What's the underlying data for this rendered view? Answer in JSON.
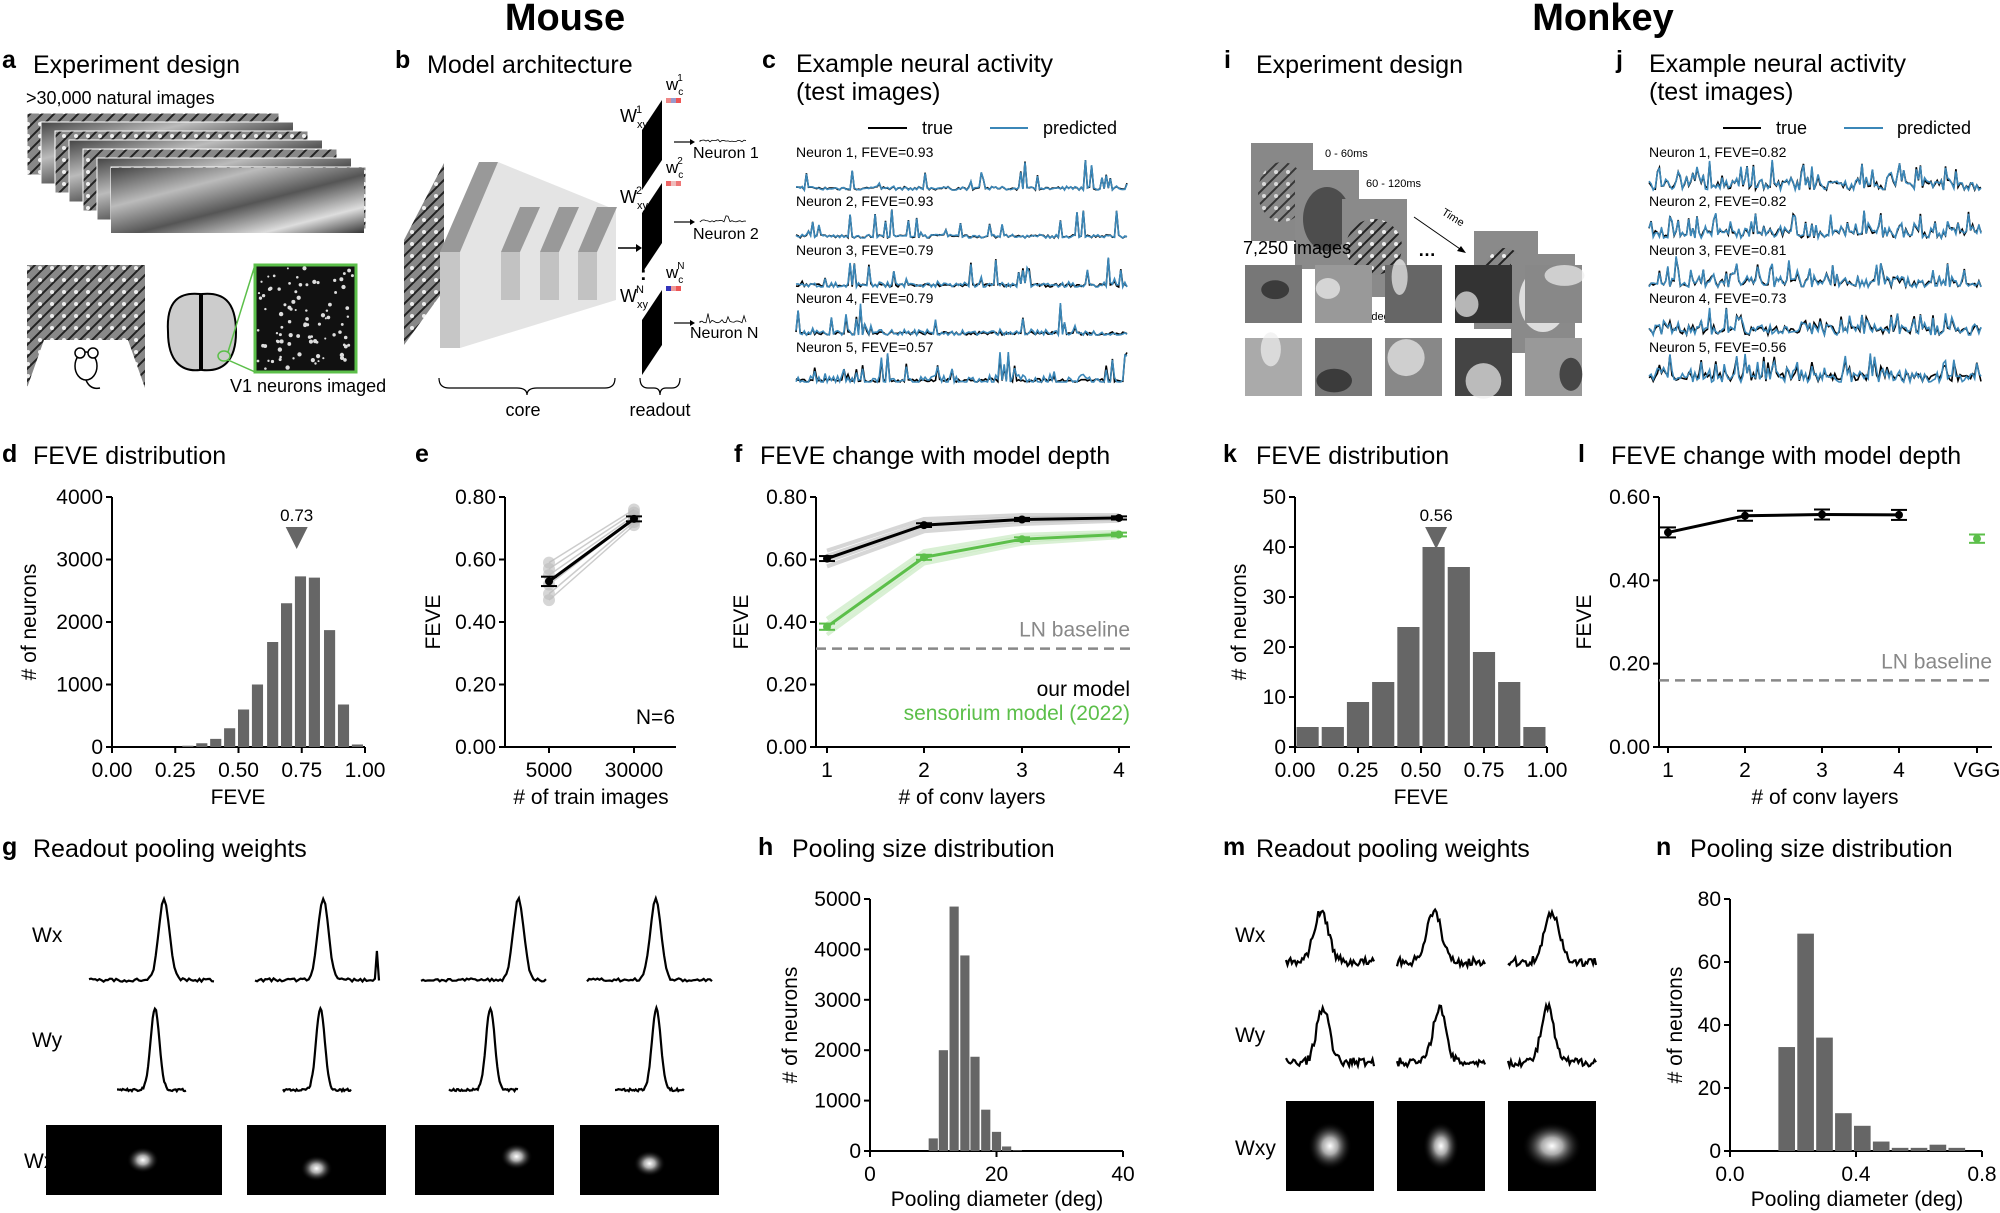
{
  "headers": {
    "mouse": "Mouse",
    "monkey": "Monkey"
  },
  "colors": {
    "bar": "#666666",
    "true": "#000000",
    "predicted": "#3b87b8",
    "sensorium": "#5cbf4a",
    "baseline": "#888888",
    "imaged_box": "#5cbf4a"
  },
  "panels": {
    "a": {
      "letter": "a",
      "title": "Experiment design",
      "caption": ">30,000 natural images",
      "imaged": "V1 neurons imaged"
    },
    "b": {
      "letter": "b",
      "title": "Model architecture",
      "w_base": "W",
      "w_sub": "xy",
      "wc_base": "w",
      "wc_sub": "c",
      "indices": [
        "1",
        "2",
        "N"
      ],
      "neurons": [
        "Neuron 1",
        "Neuron 2",
        "Neuron N"
      ],
      "core": "core",
      "readout": "readout"
    },
    "c": {
      "letter": "c",
      "title1": "Example neural activity",
      "title2": "(test images)",
      "legend_true": "true",
      "legend_pred": "predicted",
      "neurons": [
        "Neuron 1, FEVE=0.93",
        "Neuron 2, FEVE=0.93",
        "Neuron 3, FEVE=0.79",
        "Neuron 4, FEVE=0.79",
        "Neuron 5, FEVE=0.57"
      ]
    },
    "d": {
      "letter": "d",
      "title": "FEVE distribution"
    },
    "e": {
      "letter": "e"
    },
    "f": {
      "letter": "f",
      "title": "FEVE change with model depth"
    },
    "g": {
      "letter": "g",
      "title": "Readout pooling weights",
      "rows": [
        "Wx",
        "Wy",
        "Wxy"
      ]
    },
    "h": {
      "letter": "h",
      "title": "Pooling size distribution"
    },
    "i": {
      "letter": "i",
      "title": "Experiment design",
      "t1": "0 - 60ms",
      "t2": "60 - 120ms",
      "time": "Time",
      "scale": "2 deg",
      "count": "7,250 images"
    },
    "j": {
      "letter": "j",
      "title1": "Example neural activity",
      "title2": "(test images)",
      "legend_true": "true",
      "legend_pred": "predicted",
      "neurons": [
        "Neuron 1, FEVE=0.82",
        "Neuron 2, FEVE=0.82",
        "Neuron 3, FEVE=0.81",
        "Neuron 4, FEVE=0.73",
        "Neuron 5, FEVE=0.56"
      ]
    },
    "k": {
      "letter": "k",
      "title": "FEVE distribution"
    },
    "l": {
      "letter": "l",
      "title": "FEVE change with model depth"
    },
    "m": {
      "letter": "m",
      "title": "Readout pooling weights",
      "rows": [
        "Wx",
        "Wy",
        "Wxy"
      ]
    },
    "n": {
      "letter": "n",
      "title": "Pooling size distribution"
    }
  },
  "chart_data": [
    {
      "panel": "d",
      "type": "bar",
      "xlabel": "FEVE",
      "ylabel": "# of neurons",
      "xlim": [
        0,
        1
      ],
      "ylim": [
        0,
        4000
      ],
      "xticks": [
        "0.00",
        "0.25",
        "0.50",
        "0.75",
        "1.00"
      ],
      "yticks": [
        "0",
        "1000",
        "2000",
        "3000",
        "4000"
      ],
      "bin_width": 0.05,
      "x": [
        0.3,
        0.355,
        0.41,
        0.465,
        0.52,
        0.575,
        0.635,
        0.69,
        0.745,
        0.8,
        0.86,
        0.915,
        0.97
      ],
      "values": [
        20,
        60,
        130,
        300,
        600,
        1000,
        1680,
        2300,
        2730,
        2710,
        1870,
        680,
        40
      ],
      "marker": {
        "label": "0.73",
        "x": 0.73
      }
    },
    {
      "panel": "e",
      "type": "line",
      "xlabel": "# of train images",
      "ylabel": "FEVE",
      "ylim": [
        0,
        0.8
      ],
      "categories": [
        "5000",
        "30000"
      ],
      "yticks": [
        "0.00",
        "0.20",
        "0.40",
        "0.60",
        "0.80"
      ],
      "mean": [
        0.53,
        0.73
      ],
      "sem": [
        0.015,
        0.008
      ],
      "individual": [
        [
          0.59,
          0.76
        ],
        [
          0.57,
          0.75
        ],
        [
          0.55,
          0.74
        ],
        [
          0.52,
          0.73
        ],
        [
          0.49,
          0.72
        ],
        [
          0.47,
          0.71
        ]
      ],
      "annotation": "N=6"
    },
    {
      "panel": "f",
      "type": "line",
      "xlabel": "# of conv layers",
      "ylabel": "FEVE",
      "ylim": [
        0,
        0.8
      ],
      "categories": [
        "1",
        "2",
        "3",
        "4"
      ],
      "yticks": [
        "0.00",
        "0.20",
        "0.40",
        "0.60",
        "0.80"
      ],
      "series": [
        {
          "name": "our model",
          "color": "#000000",
          "values": [
            0.603,
            0.71,
            0.728,
            0.733
          ],
          "sem": [
            0.008,
            0.006,
            0.005,
            0.005
          ]
        },
        {
          "name": "sensorium model (2022)",
          "color": "#5cbf4a",
          "values": [
            0.385,
            0.607,
            0.665,
            0.68
          ],
          "sem": [
            0.01,
            0.008,
            0.006,
            0.006
          ]
        }
      ],
      "baseline": {
        "name": "LN baseline",
        "value": 0.315
      }
    },
    {
      "panel": "k",
      "type": "bar",
      "xlabel": "FEVE",
      "ylabel": "# of neurons",
      "xlim": [
        0,
        1
      ],
      "ylim": [
        0,
        50
      ],
      "xticks": [
        "0.00",
        "0.25",
        "0.50",
        "0.75",
        "1.00"
      ],
      "yticks": [
        "0",
        "10",
        "20",
        "30",
        "40",
        "50"
      ],
      "bin_width": 0.1,
      "x": [
        0.05,
        0.15,
        0.25,
        0.35,
        0.45,
        0.55,
        0.65,
        0.75,
        0.85,
        0.95
      ],
      "values": [
        4,
        4,
        9,
        13,
        24,
        40,
        36,
        19,
        13,
        4
      ],
      "marker": {
        "label": "0.56",
        "x": 0.56
      }
    },
    {
      "panel": "l",
      "type": "line",
      "xlabel": "# of conv layers",
      "ylabel": "FEVE",
      "ylim": [
        0,
        0.6
      ],
      "categories": [
        "1",
        "2",
        "3",
        "4",
        "VGG"
      ],
      "yticks": [
        "0.00",
        "0.20",
        "0.40",
        "0.60"
      ],
      "series": [
        {
          "name": "our model",
          "color": "#000000",
          "values": [
            0.515,
            0.555,
            0.558,
            0.557,
            null
          ],
          "sem": [
            0.012,
            0.012,
            0.012,
            0.012,
            null
          ]
        },
        {
          "name": "VGG",
          "color": "#5cbf4a",
          "values": [
            null,
            null,
            null,
            null,
            0.5
          ],
          "sem": [
            null,
            null,
            null,
            null,
            0.01
          ]
        }
      ],
      "baseline": {
        "name": "LN baseline",
        "value": 0.16
      }
    },
    {
      "panel": "h",
      "type": "bar",
      "xlabel": "Pooling diameter (deg)",
      "ylabel": "# of neurons",
      "xlim": [
        0,
        40
      ],
      "ylim": [
        0,
        5000
      ],
      "xticks": [
        "0",
        "20",
        "40"
      ],
      "yticks": [
        "0",
        "1000",
        "2000",
        "3000",
        "4000",
        "5000"
      ],
      "bin_width": 1.65,
      "x": [
        10.0,
        11.6,
        13.3,
        15.0,
        16.6,
        18.3,
        20.0,
        21.6,
        23.3
      ],
      "values": [
        250,
        2000,
        4850,
        3880,
        1870,
        820,
        380,
        90,
        15
      ]
    },
    {
      "panel": "n",
      "type": "bar",
      "xlabel": "Pooling diameter (deg)",
      "ylabel": "# of neurons",
      "xlim": [
        0,
        0.8
      ],
      "ylim": [
        0,
        80
      ],
      "xticks": [
        "0.0",
        "0.4",
        "0.8"
      ],
      "yticks": [
        "0",
        "20",
        "40",
        "60",
        "80"
      ],
      "bin_width": 0.06,
      "x": [
        0.18,
        0.24,
        0.3,
        0.36,
        0.42,
        0.48,
        0.54,
        0.6,
        0.66,
        0.72
      ],
      "values": [
        33,
        69,
        36,
        12,
        8,
        3,
        1,
        1,
        2,
        1
      ]
    }
  ]
}
